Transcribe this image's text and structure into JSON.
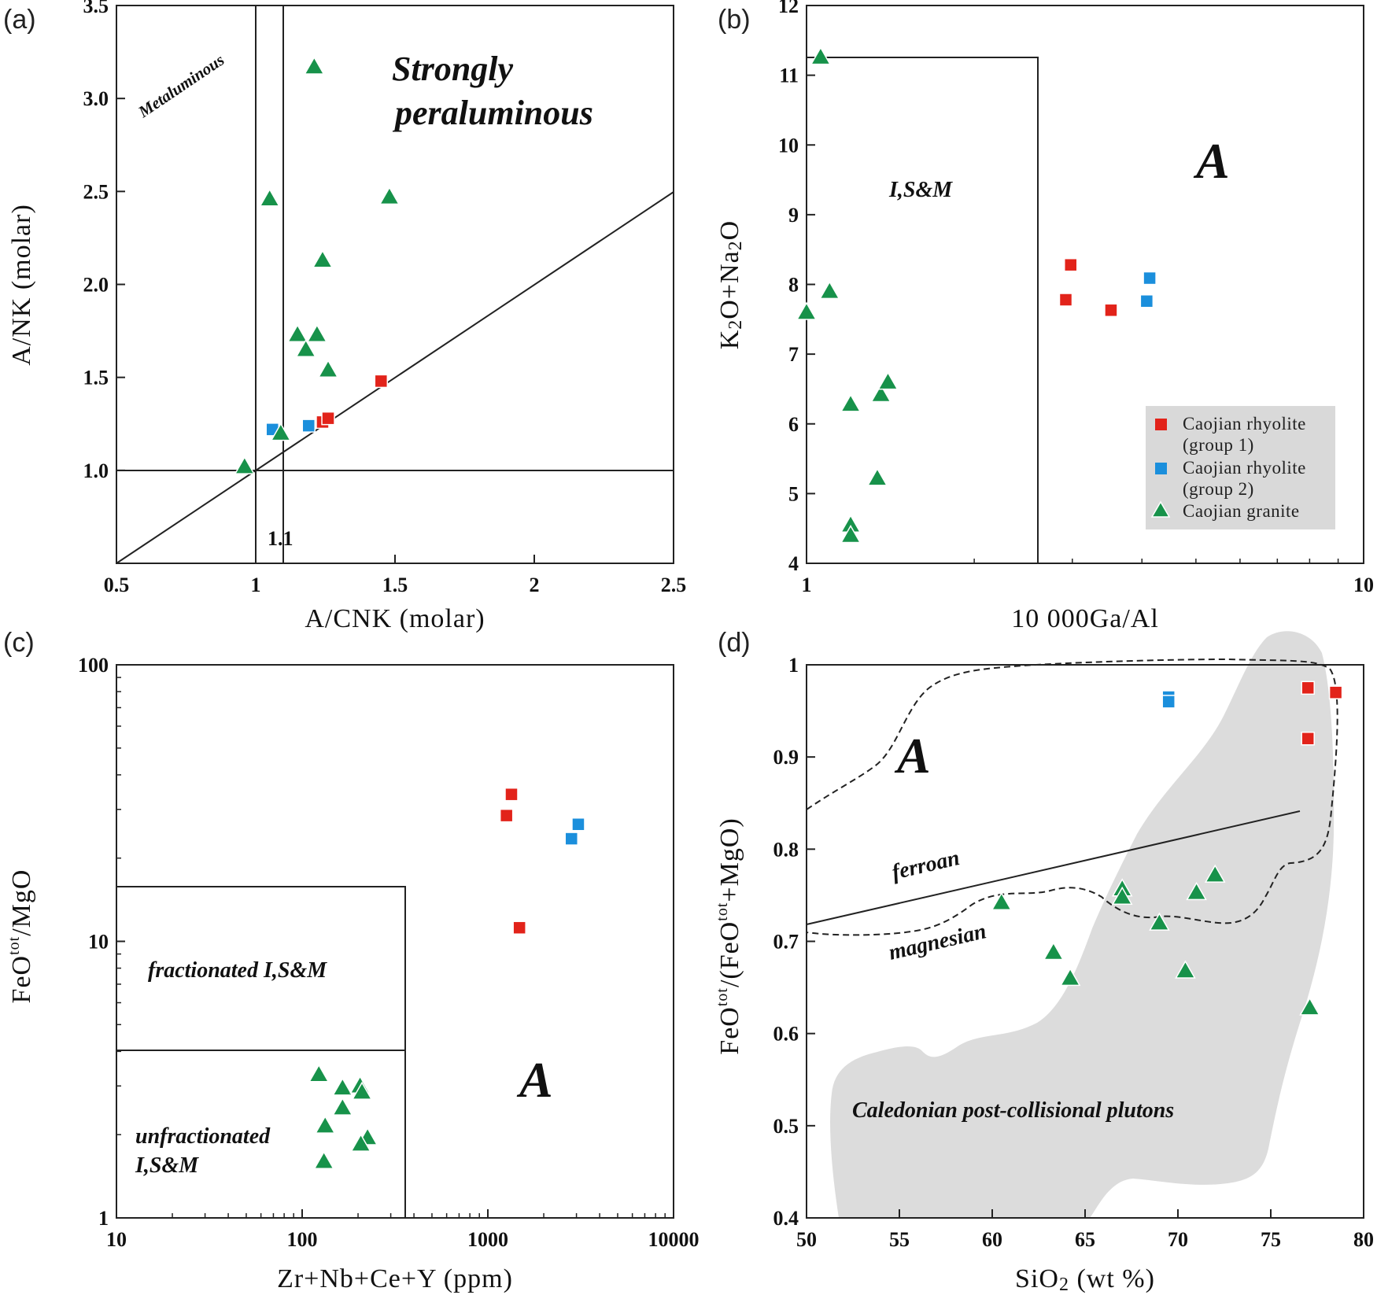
{
  "colors": {
    "rhyolite_group1": "#e2231a",
    "rhyolite_group2": "#1b8fdc",
    "granite": "#17924a",
    "field_gray": "#dcdcdc"
  },
  "legend": {
    "group1_line1": "Caojian rhyolite",
    "group1_line2": "(group 1)",
    "group2_line1": "Caojian rhyolite",
    "group2_line2": "(group 2)",
    "granite": "Caojian granite"
  },
  "chart_data": [
    {
      "panel": "(a)",
      "type": "scatter",
      "xlabel": "A/CNK (molar)",
      "ylabel": "A/NK (molar)",
      "xlim": [
        0.5,
        2.5
      ],
      "ylim": [
        0.5,
        3.5
      ],
      "xticks": [
        "0.5",
        "1",
        "1.5",
        "2",
        "2.5"
      ],
      "yticks": [
        "1.0",
        "1.5",
        "2.0",
        "2.5",
        "3.0",
        "3.5"
      ],
      "annotations": {
        "metaluminous": "Metaluminous",
        "strongly_1": "Strongly",
        "strongly_2": "peraluminous",
        "line_1_1": "1.1"
      },
      "series": [
        {
          "name": "Caojian rhyolite (group 1)",
          "points": [
            [
              1.24,
              1.26
            ],
            [
              1.26,
              1.28
            ],
            [
              1.45,
              1.48
            ]
          ]
        },
        {
          "name": "Caojian rhyolite (group 2)",
          "points": [
            [
              1.06,
              1.22
            ],
            [
              1.19,
              1.24
            ]
          ]
        },
        {
          "name": "Caojian granite",
          "points": [
            [
              0.96,
              1.02
            ],
            [
              1.09,
              1.2
            ],
            [
              1.05,
              2.46
            ],
            [
              1.21,
              3.17
            ],
            [
              1.48,
              2.47
            ],
            [
              1.24,
              2.13
            ],
            [
              1.15,
              1.73
            ],
            [
              1.22,
              1.73
            ],
            [
              1.18,
              1.65
            ],
            [
              1.26,
              1.54
            ]
          ]
        }
      ]
    },
    {
      "panel": "(b)",
      "type": "scatter",
      "xscale": "log",
      "xlabel": "10 000Ga/Al",
      "ylabel": "K2O+Na2O",
      "xlim": [
        1,
        10
      ],
      "ylim": [
        4,
        12
      ],
      "xticks": [
        "1",
        "10"
      ],
      "yticks": [
        "4",
        "5",
        "6",
        "7",
        "8",
        "9",
        "10",
        "11",
        "12"
      ],
      "annotations": {
        "ism": "I,S&M",
        "a": "A"
      },
      "series": [
        {
          "name": "Caojian rhyolite (group 1)",
          "points": [
            [
              2.92,
              7.78
            ],
            [
              2.98,
              8.28
            ],
            [
              3.52,
              7.63
            ]
          ]
        },
        {
          "name": "Caojian rhyolite (group 2)",
          "points": [
            [
              4.08,
              7.76
            ],
            [
              4.13,
              8.09
            ]
          ]
        },
        {
          "name": "Caojian granite",
          "points": [
            [
              1.06,
              11.26
            ],
            [
              1.0,
              7.6
            ],
            [
              1.1,
              7.9
            ],
            [
              1.2,
              6.28
            ],
            [
              1.36,
              6.42
            ],
            [
              1.4,
              6.6
            ],
            [
              1.34,
              5.22
            ],
            [
              1.2,
              4.55
            ],
            [
              1.2,
              4.4
            ]
          ]
        }
      ]
    },
    {
      "panel": "(c)",
      "type": "scatter",
      "xscale": "log",
      "yscale": "log",
      "xlabel": "Zr+Nb+Ce+Y (ppm)",
      "ylabel": "FeOtot/MgO",
      "xlim": [
        10,
        10000
      ],
      "ylim": [
        1,
        100
      ],
      "xticks": [
        "10",
        "100",
        "1000",
        "10000"
      ],
      "yticks": [
        "1",
        "10",
        "100"
      ],
      "annotations": {
        "fractionated": "fractionated I,S&M",
        "unfractionated_1": "unfractionated",
        "unfractionated_2": "I,S&M",
        "a": "A"
      },
      "series": [
        {
          "name": "Caojian rhyolite (group 1)",
          "points": [
            [
              1340,
              34
            ],
            [
              1260,
              28.5
            ],
            [
              1480,
              11.2
            ]
          ]
        },
        {
          "name": "Caojian rhyolite (group 2)",
          "points": [
            [
              2820,
              23.5
            ],
            [
              3070,
              26.5
            ]
          ]
        },
        {
          "name": "Caojian granite",
          "points": [
            [
              123,
              3.3
            ],
            [
              165,
              2.95
            ],
            [
              205,
              3.0
            ],
            [
              210,
              2.85
            ],
            [
              165,
              2.5
            ],
            [
              133,
              2.15
            ],
            [
              225,
              1.95
            ],
            [
              207,
              1.85
            ],
            [
              131,
              1.6
            ]
          ]
        }
      ]
    },
    {
      "panel": "(d)",
      "type": "scatter",
      "xlabel": "SiO2 (wt %)",
      "ylabel": "FeOtot/(FeOtot+MgO)",
      "xlim": [
        50,
        80
      ],
      "ylim": [
        0.4,
        1.0
      ],
      "xticks": [
        "50",
        "55",
        "60",
        "65",
        "70",
        "75",
        "80"
      ],
      "yticks": [
        "0.4",
        "0.5",
        "0.6",
        "0.7",
        "0.8",
        "0.9",
        "1"
      ],
      "annotations": {
        "a": "A",
        "ferroan": "ferroan",
        "magnesian": "magnesian",
        "field": "Caledonian post-collisional plutons"
      },
      "series": [
        {
          "name": "Caojian rhyolite (group 1)",
          "points": [
            [
              77.0,
              0.975
            ],
            [
              78.5,
              0.97
            ],
            [
              77.0,
              0.92
            ]
          ]
        },
        {
          "name": "Caojian rhyolite (group 2)",
          "points": [
            [
              69.5,
              0.965
            ],
            [
              69.5,
              0.96
            ]
          ]
        },
        {
          "name": "Caojian granite",
          "points": [
            [
              60.5,
              0.742
            ],
            [
              67.0,
              0.757
            ],
            [
              67.0,
              0.748
            ],
            [
              69.0,
              0.72
            ],
            [
              71.0,
              0.753
            ],
            [
              72.0,
              0.772
            ],
            [
              63.3,
              0.688
            ],
            [
              64.2,
              0.66
            ],
            [
              70.4,
              0.668
            ],
            [
              77.1,
              0.628
            ]
          ]
        }
      ]
    }
  ]
}
